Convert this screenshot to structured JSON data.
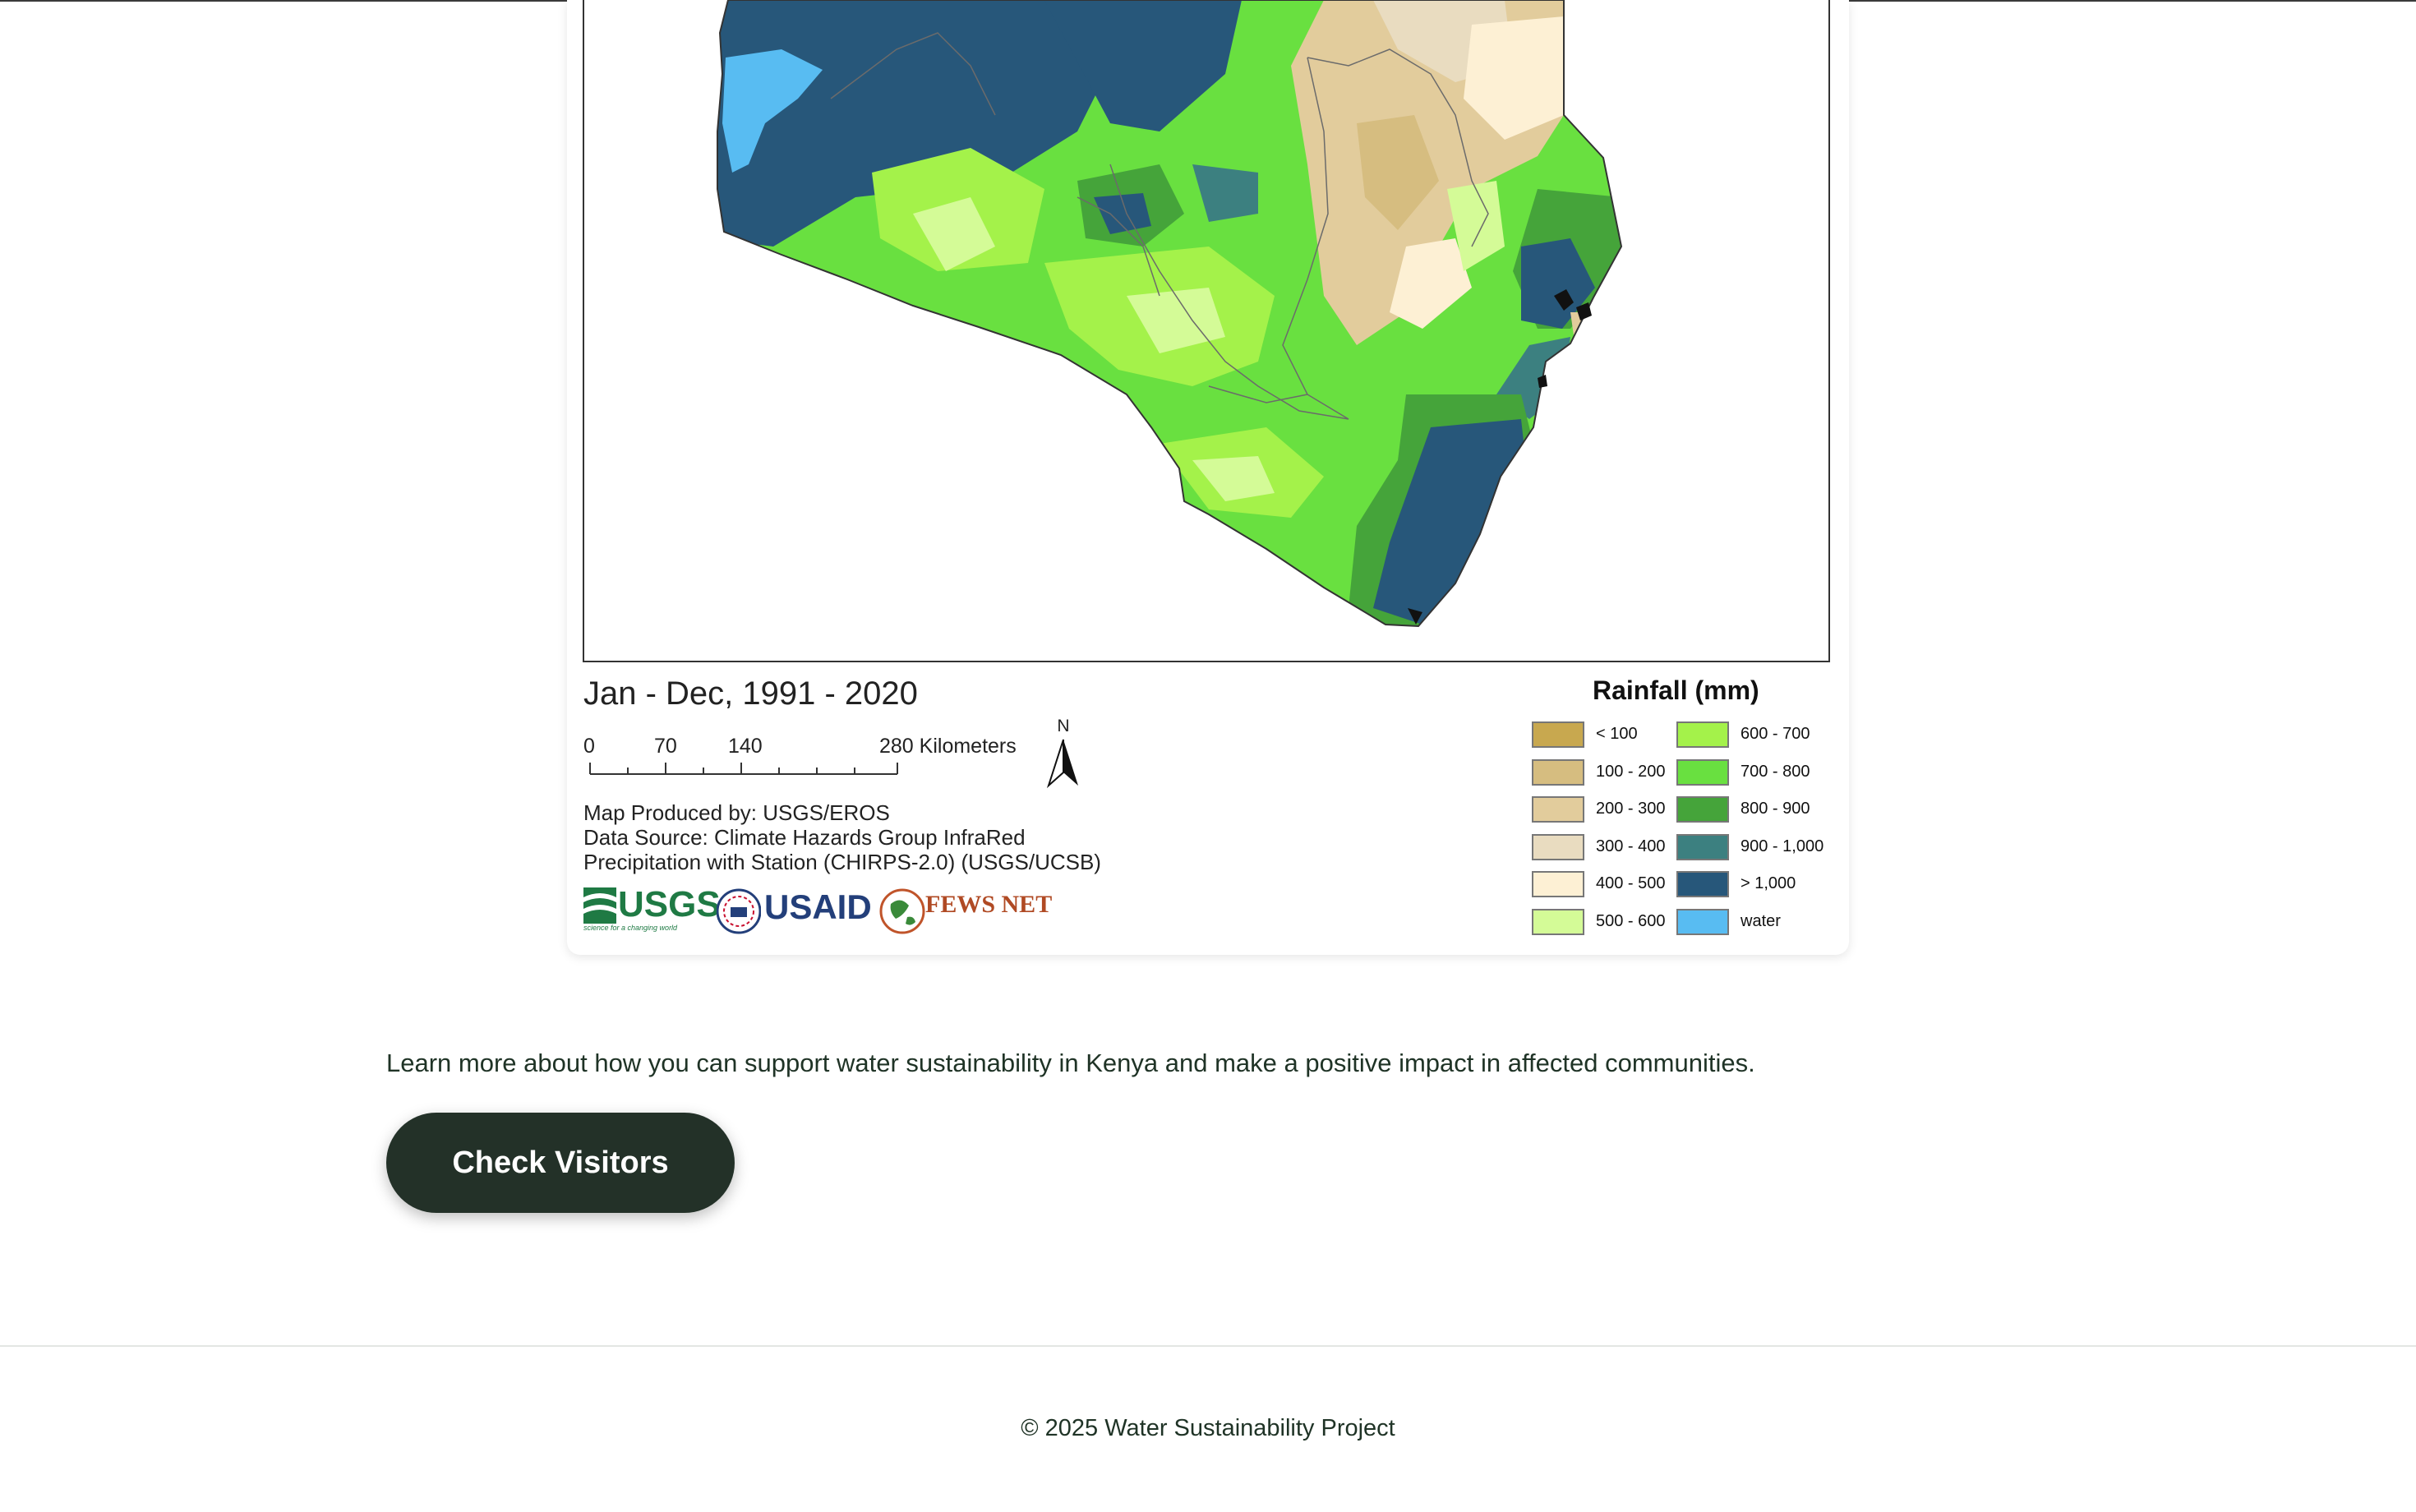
{
  "map": {
    "period": "Jan - Dec, 1991 - 2020",
    "scale": {
      "labels": [
        "0",
        "70",
        "140",
        "280 Kilometers"
      ]
    },
    "north_label": "N",
    "credits": {
      "produced_by": "Map Produced by: USGS/EROS",
      "source_line1": "Data Source: Climate Hazards Group InfraRed",
      "source_line2": "Precipitation with Station (CHIRPS-2.0) (USGS/UCSB)"
    },
    "logos": {
      "usgs": "USGS",
      "usgs_tagline": "science for a changing world",
      "usaid": "USAID",
      "fewsnet": "FEWS NET"
    },
    "legend": {
      "title": "Rainfall (mm)",
      "items": [
        {
          "label": "< 100",
          "color": "#c8a84f"
        },
        {
          "label": "100 - 200",
          "color": "#d6bd80"
        },
        {
          "label": "200 - 300",
          "color": "#e2cc9c"
        },
        {
          "label": "300 - 400",
          "color": "#e9dcc0"
        },
        {
          "label": "400 - 500",
          "color": "#fdf0d4"
        },
        {
          "label": "500 - 600",
          "color": "#d4fb97"
        },
        {
          "label": "600 - 700",
          "color": "#a4f24a"
        },
        {
          "label": "700 - 800",
          "color": "#69e040"
        },
        {
          "label": "800 - 900",
          "color": "#45a43a"
        },
        {
          "label": "900 - 1,000",
          "color": "#3c8080"
        },
        {
          "label": "> 1,000",
          "color": "#27577a"
        },
        {
          "label": "water",
          "color": "#58bcf2"
        }
      ]
    }
  },
  "cta": {
    "text": "Learn more about how you can support water sustainability in Kenya and make a positive impact in affected communities.",
    "button_label": "Check Visitors"
  },
  "footer": {
    "copyright": "© 2025 Water Sustainability Project"
  }
}
